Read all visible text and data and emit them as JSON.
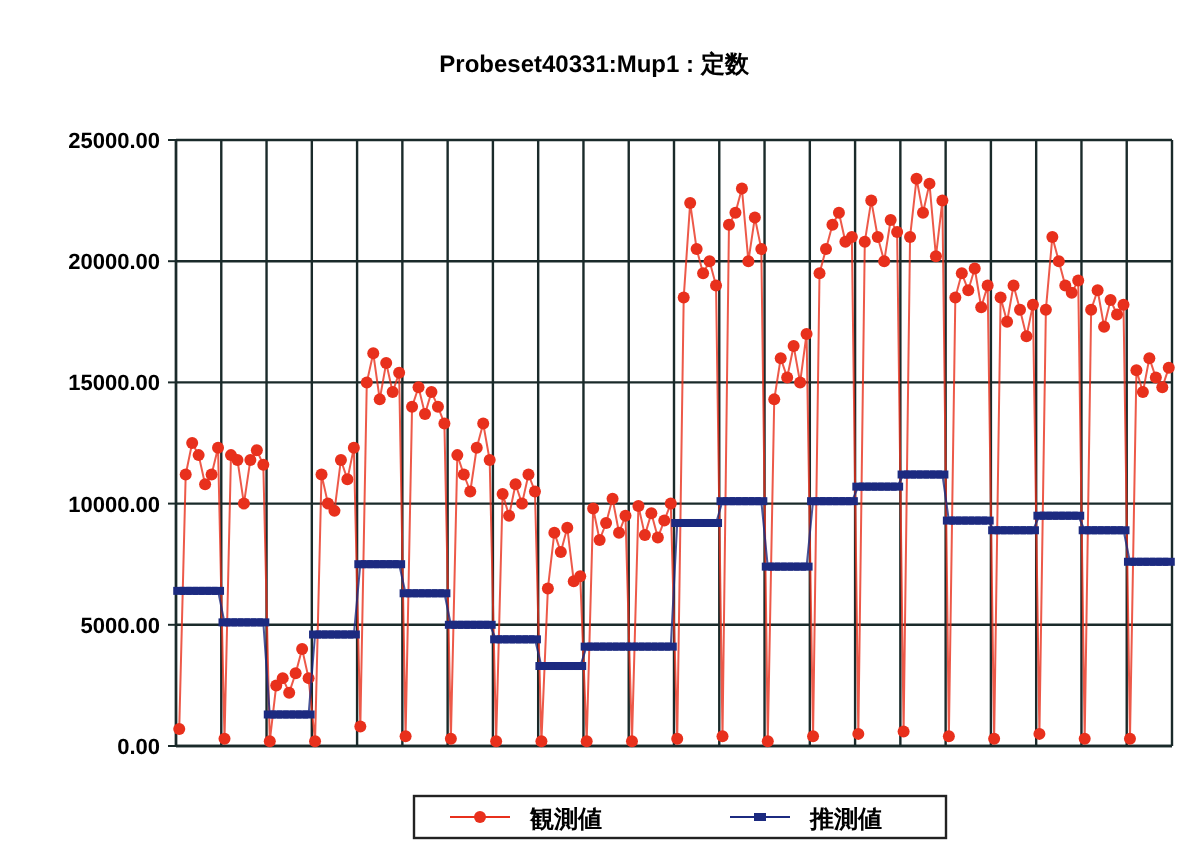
{
  "chart_data": {
    "type": "line",
    "title": "Probeset40331:Mup1 : 定数",
    "categories": [
      null,
      null,
      null,
      null,
      null,
      null,
      null,
      null,
      null,
      null,
      null,
      null,
      null,
      null,
      null,
      null,
      null,
      null,
      null,
      null,
      null,
      null,
      null,
      null,
      null,
      null,
      null,
      null,
      null,
      null,
      null,
      null,
      null,
      null,
      null,
      null,
      null,
      null,
      null,
      null,
      null,
      null,
      null,
      null,
      null,
      null,
      null,
      null,
      null,
      null,
      null,
      null,
      null,
      null,
      null,
      null,
      null,
      null,
      null,
      null,
      null,
      null,
      null,
      null,
      null,
      null,
      null,
      null,
      null,
      null,
      null,
      null,
      null,
      null,
      null,
      null,
      null,
      null,
      null,
      null,
      null,
      null,
      null,
      null,
      null,
      null,
      null,
      null,
      null,
      null,
      null,
      null,
      null,
      null,
      null,
      null,
      null,
      null,
      null,
      null,
      null,
      null,
      null,
      null,
      null,
      null,
      null,
      null,
      null,
      null,
      null,
      null,
      null,
      null,
      null,
      null,
      null,
      null,
      null,
      null,
      null,
      null,
      null,
      null,
      null,
      null,
      null,
      null,
      null,
      null,
      null,
      null,
      null,
      null,
      null,
      null,
      null,
      null,
      null,
      null,
      null,
      null,
      null,
      null,
      null,
      null,
      null,
      null,
      null,
      null,
      null,
      null,
      null,
      null
    ],
    "series": [
      {
        "name": "観測値",
        "color": "#e8301c",
        "marker": "circle",
        "values": [
          700,
          11200,
          12500,
          12000,
          10800,
          11200,
          12300,
          300,
          12000,
          11800,
          10000,
          11800,
          12200,
          11600,
          200,
          2500,
          2800,
          2200,
          3000,
          4000,
          2800,
          200,
          11200,
          10000,
          9700,
          11800,
          11000,
          12300,
          800,
          15000,
          16200,
          14300,
          15800,
          14600,
          15400,
          400,
          14000,
          14800,
          13700,
          14600,
          14000,
          13300,
          300,
          12000,
          11200,
          10500,
          12300,
          13300,
          11800,
          200,
          10400,
          9500,
          10800,
          10000,
          11200,
          10500,
          200,
          6500,
          8800,
          8000,
          9000,
          6800,
          7000,
          200,
          9800,
          8500,
          9200,
          10200,
          8800,
          9500,
          200,
          9900,
          8700,
          9600,
          8600,
          9300,
          10000,
          300,
          18500,
          22400,
          20500,
          19500,
          20000,
          19000,
          400,
          21500,
          22000,
          23000,
          20000,
          21800,
          20500,
          200,
          14300,
          16000,
          15200,
          16500,
          15000,
          17000,
          400,
          19500,
          20500,
          21500,
          22000,
          20800,
          21000,
          500,
          20800,
          22500,
          21000,
          20000,
          21700,
          21200,
          600,
          21000,
          23400,
          22000,
          23200,
          20200,
          22500,
          400,
          18500,
          19500,
          18800,
          19700,
          18100,
          19000,
          300,
          18500,
          17500,
          19000,
          18000,
          16900,
          18200,
          500,
          18000,
          21000,
          20000,
          19000,
          18700,
          19200,
          300,
          18000,
          18800,
          17300,
          18400,
          17800,
          18200,
          300,
          15500,
          14600,
          16000,
          15200,
          14800,
          15600
        ]
      },
      {
        "name": "推測値",
        "color": "#1c2a80",
        "marker": "square",
        "values": [
          6400,
          6400,
          6400,
          6400,
          6400,
          6400,
          6400,
          5100,
          5100,
          5100,
          5100,
          5100,
          5100,
          5100,
          1300,
          1300,
          1300,
          1300,
          1300,
          1300,
          1300,
          4600,
          4600,
          4600,
          4600,
          4600,
          4600,
          4600,
          7500,
          7500,
          7500,
          7500,
          7500,
          7500,
          7500,
          6300,
          6300,
          6300,
          6300,
          6300,
          6300,
          6300,
          5000,
          5000,
          5000,
          5000,
          5000,
          5000,
          5000,
          4400,
          4400,
          4400,
          4400,
          4400,
          4400,
          4400,
          3300,
          3300,
          3300,
          3300,
          3300,
          3300,
          3300,
          4100,
          4100,
          4100,
          4100,
          4100,
          4100,
          4100,
          4100,
          4100,
          4100,
          4100,
          4100,
          4100,
          4100,
          9200,
          9200,
          9200,
          9200,
          9200,
          9200,
          9200,
          10100,
          10100,
          10100,
          10100,
          10100,
          10100,
          10100,
          7400,
          7400,
          7400,
          7400,
          7400,
          7400,
          7400,
          10100,
          10100,
          10100,
          10100,
          10100,
          10100,
          10100,
          10700,
          10700,
          10700,
          10700,
          10700,
          10700,
          10700,
          11200,
          11200,
          11200,
          11200,
          11200,
          11200,
          11200,
          9300,
          9300,
          9300,
          9300,
          9300,
          9300,
          9300,
          8900,
          8900,
          8900,
          8900,
          8900,
          8900,
          8900,
          9500,
          9500,
          9500,
          9500,
          9500,
          9500,
          9500,
          8900,
          8900,
          8900,
          8900,
          8900,
          8900,
          8900,
          7600,
          7600,
          7600,
          7600,
          7600,
          7600,
          7600
        ]
      }
    ],
    "ylim": [
      0,
      25000
    ],
    "yticks": [
      {
        "value": 0,
        "label": "0.00"
      },
      {
        "value": 5000,
        "label": "5000.00"
      },
      {
        "value": 10000,
        "label": "10000.00"
      },
      {
        "value": 15000,
        "label": "15000.00"
      },
      {
        "value": 20000,
        "label": "20000.00"
      },
      {
        "value": 25000,
        "label": "25000.00"
      }
    ],
    "grid": true,
    "legend": "bottom",
    "tick_labels": "y",
    "line_style": "solid"
  }
}
